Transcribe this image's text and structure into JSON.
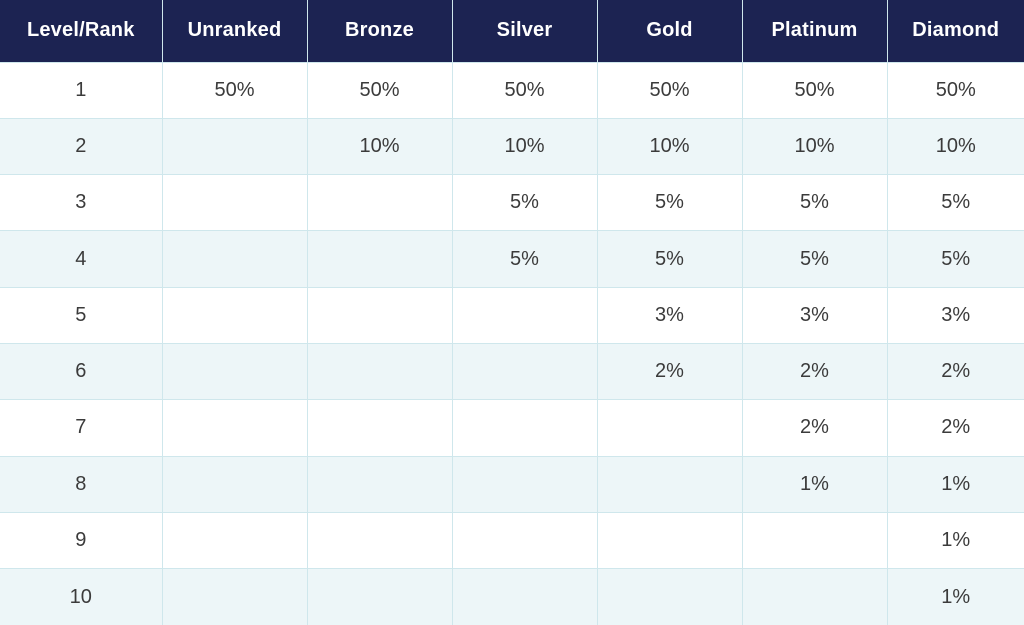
{
  "colors": {
    "header_bg": "#1c2352",
    "header_text": "#ffffff",
    "stripe_bg": "#edf6f8",
    "row_bg": "#ffffff",
    "border": "#cfe7ec",
    "body_text": "#3b3b3b"
  },
  "chart_data": {
    "type": "table",
    "columns": [
      "Level/Rank",
      "Unranked",
      "Bronze",
      "Silver",
      "Gold",
      "Platinum",
      "Diamond"
    ],
    "rows": [
      [
        "1",
        "50%",
        "50%",
        "50%",
        "50%",
        "50%",
        "50%"
      ],
      [
        "2",
        "",
        "10%",
        "10%",
        "10%",
        "10%",
        "10%"
      ],
      [
        "3",
        "",
        "",
        "5%",
        "5%",
        "5%",
        "5%"
      ],
      [
        "4",
        "",
        "",
        "5%",
        "5%",
        "5%",
        "5%"
      ],
      [
        "5",
        "",
        "",
        "",
        "3%",
        "3%",
        "3%"
      ],
      [
        "6",
        "",
        "",
        "",
        "2%",
        "2%",
        "2%"
      ],
      [
        "7",
        "",
        "",
        "",
        "",
        "2%",
        "2%"
      ],
      [
        "8",
        "",
        "",
        "",
        "",
        "1%",
        "1%"
      ],
      [
        "9",
        "",
        "",
        "",
        "",
        "",
        "1%"
      ],
      [
        "10",
        "",
        "",
        "",
        "",
        "",
        "1%"
      ]
    ]
  }
}
